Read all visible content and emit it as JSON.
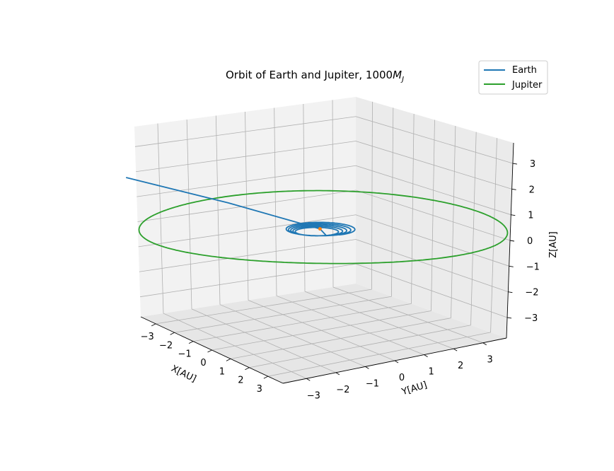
{
  "chart_data": {
    "type": "line",
    "projection": "3d",
    "title": "Orbit of Earth and Jupiter, 1000",
    "title_math": "M",
    "title_math_sub": "J",
    "xlabel": "X[AU]",
    "ylabel": "Y[AU]",
    "zlabel": "Z[AU]",
    "xlim": [
      -3.8,
      3.8
    ],
    "ylim": [
      -3.8,
      3.8
    ],
    "zlim": [
      -3.8,
      3.8
    ],
    "x_ticks": [
      -3,
      -2,
      -1,
      0,
      1,
      2,
      3
    ],
    "y_ticks": [
      -3,
      -2,
      -1,
      0,
      1,
      2,
      3
    ],
    "z_ticks": [
      -3,
      -2,
      -1,
      0,
      1,
      2,
      3
    ],
    "x_tick_labels": [
      "−3",
      "−2",
      "−1",
      "0",
      "1",
      "2",
      "3"
    ],
    "y_tick_labels": [
      "−3",
      "−2",
      "−1",
      "0",
      "1",
      "2",
      "3"
    ],
    "z_tick_labels": [
      "−3",
      "−2",
      "−1",
      "0",
      "1",
      "2",
      "3"
    ],
    "grid": true,
    "legend_position": "top-right",
    "series": [
      {
        "name": "Earth",
        "color": "#1f77b4",
        "spiral": {
          "radius_start": 1.0,
          "radius_end": 0.55,
          "turns": 5,
          "center_start": [
            0.0,
            0.0,
            0.0
          ],
          "center_end": [
            0.15,
            -0.25,
            -0.05
          ]
        },
        "escape": [
          [
            0.0,
            0.0,
            0.0
          ],
          [
            -2.0,
            -1.8,
            0.8
          ],
          [
            -4.2,
            -3.9,
            1.72
          ]
        ]
      },
      {
        "name": "Jupiter",
        "color": "#2ca02c",
        "circle": {
          "radius": 5.2,
          "z": 0.0
        }
      }
    ],
    "sun_marker": {
      "color": "#ff7f0e",
      "position": [
        0.0,
        0.0,
        0.0
      ]
    }
  }
}
